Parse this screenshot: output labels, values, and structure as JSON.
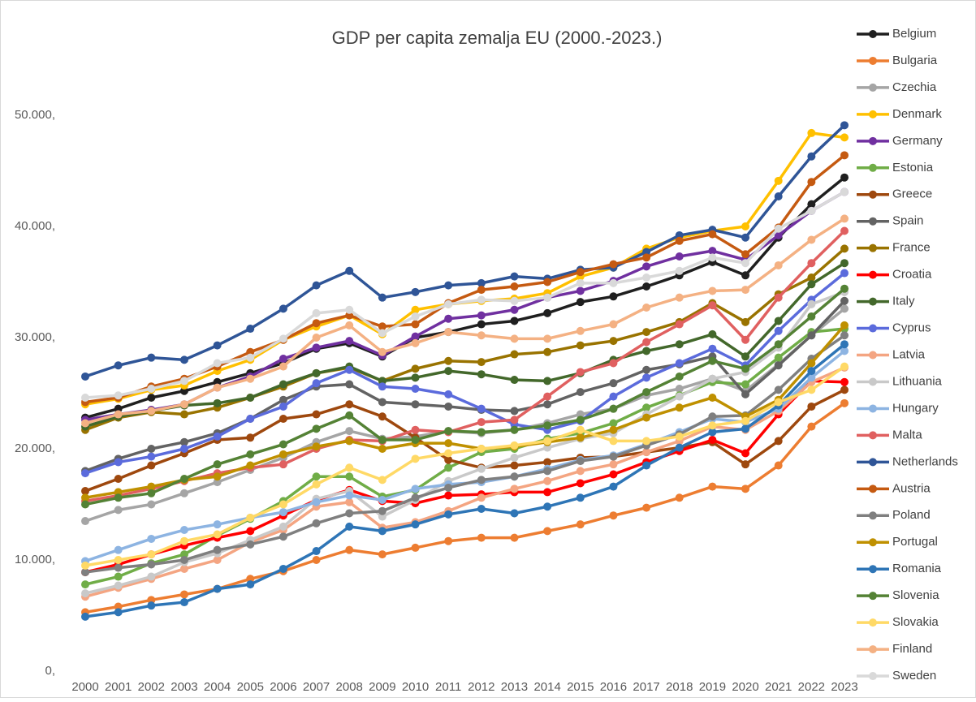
{
  "chart_data": {
    "type": "line",
    "title": "GDP per capita zemalja EU (2000.-2023.)",
    "categories": [
      "2000",
      "2001",
      "2002",
      "2003",
      "2004",
      "2005",
      "2006",
      "2007",
      "2008",
      "2009",
      "2010",
      "2011",
      "2012",
      "2013",
      "2014",
      "2015",
      "2016",
      "2017",
      "2018",
      "2019",
      "2020",
      "2021",
      "2022",
      "2023"
    ],
    "ylim": [
      0,
      50000
    ],
    "yticks": [
      {
        "value": 0,
        "label": "0,"
      },
      {
        "value": 10000,
        "label": "10.000,"
      },
      {
        "value": 20000,
        "label": "20.000,"
      },
      {
        "value": 30000,
        "label": "30.000,"
      },
      {
        "value": 40000,
        "label": "40.000,"
      },
      {
        "value": 50000,
        "label": "50.000,"
      }
    ],
    "grid": false,
    "legend": "right",
    "series": [
      {
        "name": "Belgium",
        "color": "#1f1f1f",
        "values": [
          22800,
          23600,
          24600,
          25200,
          26000,
          26800,
          27700,
          29000,
          29500,
          28300,
          30000,
          30500,
          31200,
          31500,
          32200,
          33200,
          33700,
          34600,
          35600,
          36800,
          35600,
          39000,
          42000,
          44400
        ]
      },
      {
        "name": "Bulgaria",
        "color": "#ed7d31",
        "values": [
          5300,
          5800,
          6400,
          6900,
          7400,
          8300,
          9000,
          10000,
          10900,
          10500,
          11100,
          11700,
          12000,
          12000,
          12600,
          13200,
          14000,
          14700,
          15600,
          16600,
          16400,
          18500,
          22000,
          24100
        ]
      },
      {
        "name": "Czechia",
        "color": "#a5a5a5",
        "values": [
          13500,
          14500,
          15000,
          16000,
          17000,
          18100,
          19200,
          20600,
          21600,
          20900,
          21100,
          21600,
          21400,
          21700,
          22300,
          23100,
          23600,
          24800,
          25400,
          26300,
          25200,
          27600,
          30200,
          32600
        ]
      },
      {
        "name": "Denmark",
        "color": "#ffc000",
        "values": [
          24000,
          24500,
          25300,
          25700,
          27000,
          28000,
          29800,
          31000,
          32000,
          30300,
          32500,
          33000,
          33300,
          33500,
          34000,
          35500,
          36300,
          38000,
          39000,
          39600,
          40000,
          44100,
          48400,
          48000
        ]
      },
      {
        "name": "Germany",
        "color": "#7030a0",
        "values": [
          22600,
          23100,
          23500,
          24000,
          25500,
          26500,
          28100,
          29100,
          29700,
          28400,
          30100,
          31700,
          32000,
          32500,
          33600,
          34200,
          35100,
          36400,
          37300,
          37800,
          37000,
          39200,
          41400,
          43100
        ]
      },
      {
        "name": "Estonia",
        "color": "#70ad47",
        "values": [
          7800,
          8500,
          9700,
          10500,
          12200,
          13700,
          15300,
          17500,
          17500,
          15700,
          16300,
          18300,
          19700,
          20000,
          20900,
          21400,
          22300,
          23700,
          24800,
          26000,
          25800,
          28200,
          30500,
          30800
        ]
      },
      {
        "name": "Greece",
        "color": "#9e480e",
        "values": [
          16200,
          17300,
          18500,
          19600,
          20800,
          21000,
          22700,
          23100,
          24000,
          22900,
          21000,
          19000,
          18300,
          18500,
          18800,
          19200,
          19300,
          19700,
          20100,
          20600,
          18600,
          20700,
          23800,
          25300
        ]
      },
      {
        "name": "Spain",
        "color": "#636363",
        "values": [
          18000,
          19100,
          20000,
          20600,
          21400,
          22700,
          24400,
          25600,
          25800,
          24200,
          24000,
          23800,
          23500,
          23400,
          24000,
          25100,
          25900,
          27100,
          27600,
          28300,
          24900,
          27500,
          30200,
          33300
        ]
      },
      {
        "name": "France",
        "color": "#997300",
        "values": [
          21700,
          22800,
          23300,
          23100,
          23700,
          24600,
          25600,
          26800,
          27300,
          26100,
          27200,
          27900,
          27800,
          28500,
          28700,
          29300,
          29700,
          30500,
          31400,
          33100,
          31400,
          33900,
          35400,
          38000
        ]
      },
      {
        "name": "Croatia",
        "color": "#ff0000",
        "values": [
          8900,
          9600,
          10500,
          11300,
          12000,
          12600,
          14000,
          15400,
          16300,
          15300,
          15100,
          15800,
          15900,
          16100,
          16100,
          16900,
          17700,
          18800,
          19800,
          20800,
          19600,
          23100,
          26100,
          26000
        ]
      },
      {
        "name": "Italy",
        "color": "#43682b",
        "values": [
          22000,
          22900,
          23400,
          23900,
          24100,
          24600,
          25800,
          26800,
          27400,
          26100,
          26400,
          27000,
          26700,
          26200,
          26100,
          26800,
          28000,
          28800,
          29400,
          30300,
          28300,
          31500,
          34800,
          36700
        ]
      },
      {
        "name": "Cyprus",
        "color": "#5b6bdc",
        "values": [
          17800,
          18800,
          19300,
          20000,
          21100,
          22700,
          23800,
          25900,
          27100,
          25600,
          25400,
          24900,
          23600,
          22200,
          21700,
          22500,
          24700,
          26400,
          27700,
          29000,
          27500,
          30600,
          33400,
          35800
        ]
      },
      {
        "name": "Latvia",
        "color": "#f4a582",
        "values": [
          6700,
          7500,
          8300,
          9200,
          10000,
          11600,
          12700,
          14800,
          15200,
          12900,
          13400,
          14400,
          15600,
          16400,
          17100,
          18000,
          18600,
          19700,
          20700,
          22000,
          21700,
          23400,
          26000,
          27300
        ]
      },
      {
        "name": "Lithuania",
        "color": "#c9c9c9",
        "values": [
          7000,
          7700,
          8500,
          9800,
          10600,
          11800,
          13000,
          15500,
          16200,
          13900,
          15400,
          17100,
          18200,
          19200,
          20100,
          20900,
          21400,
          23100,
          24700,
          26300,
          26900,
          29100,
          33000,
          34100
        ]
      },
      {
        "name": "Hungary",
        "color": "#8db4e2",
        "values": [
          9900,
          10900,
          11900,
          12700,
          13200,
          13800,
          14300,
          15200,
          15800,
          15400,
          16400,
          16800,
          17000,
          17500,
          18200,
          19000,
          19400,
          20400,
          21500,
          22700,
          22400,
          23600,
          26400,
          28800
        ]
      },
      {
        "name": "Malta",
        "color": "#e06060",
        "values": [
          15300,
          15800,
          16400,
          17100,
          17800,
          18300,
          18600,
          20000,
          20800,
          20700,
          21700,
          21500,
          22400,
          22600,
          24700,
          26900,
          27700,
          29600,
          31200,
          32900,
          29800,
          33600,
          36700,
          39600
        ]
      },
      {
        "name": "Netherlands",
        "color": "#2f5597",
        "values": [
          26500,
          27500,
          28200,
          28000,
          29300,
          30800,
          32600,
          34700,
          36000,
          33600,
          34100,
          34700,
          34900,
          35500,
          35300,
          36100,
          36300,
          37700,
          39200,
          39700,
          39000,
          42700,
          46300,
          49100
        ]
      },
      {
        "name": "Austria",
        "color": "#c55a11",
        "values": [
          24200,
          24600,
          25600,
          26300,
          27400,
          28700,
          29800,
          31300,
          32000,
          31000,
          31200,
          33100,
          34300,
          34600,
          35000,
          35900,
          36600,
          37200,
          38700,
          39300,
          37500,
          39900,
          44000,
          46400
        ]
      },
      {
        "name": "Poland",
        "color": "#7f7f7f",
        "values": [
          8900,
          9300,
          9600,
          10000,
          10900,
          11400,
          12100,
          13300,
          14200,
          14400,
          15600,
          16500,
          17200,
          17500,
          18000,
          18900,
          19300,
          20300,
          21300,
          22900,
          23000,
          25300,
          28100,
          30200
        ]
      },
      {
        "name": "Portugal",
        "color": "#bf9000",
        "values": [
          15600,
          16100,
          16600,
          17200,
          17500,
          18500,
          19500,
          20200,
          20700,
          20000,
          20500,
          20500,
          20000,
          20200,
          20600,
          21000,
          21700,
          22800,
          23700,
          24600,
          22900,
          24400,
          27700,
          31100
        ]
      },
      {
        "name": "Romania",
        "color": "#2e75b6",
        "values": [
          4900,
          5300,
          5900,
          6200,
          7400,
          7800,
          9200,
          10800,
          13000,
          12600,
          13200,
          14100,
          14600,
          14200,
          14800,
          15600,
          16600,
          18500,
          20100,
          21500,
          21800,
          23900,
          27000,
          29400
        ]
      },
      {
        "name": "Slovenia",
        "color": "#548235",
        "values": [
          15000,
          15600,
          16000,
          17300,
          18600,
          19500,
          20400,
          21800,
          23000,
          20800,
          20800,
          21600,
          21500,
          21700,
          22100,
          22600,
          23600,
          25100,
          26500,
          27900,
          27200,
          29400,
          31900,
          34400
        ]
      },
      {
        "name": "Slovakia",
        "color": "#ffd966",
        "values": [
          9500,
          10000,
          10500,
          11700,
          12300,
          13800,
          15000,
          16800,
          18300,
          17200,
          19100,
          19600,
          20000,
          20300,
          20700,
          21700,
          20700,
          20700,
          21100,
          22100,
          22500,
          24200,
          25300,
          27400
        ]
      },
      {
        "name": "Finland",
        "color": "#f4b183",
        "values": [
          22300,
          23100,
          23400,
          24000,
          25500,
          26300,
          27400,
          30000,
          31100,
          28700,
          29500,
          30500,
          30200,
          29900,
          29900,
          30600,
          31200,
          32700,
          33600,
          34200,
          34300,
          36500,
          38800,
          40700
        ]
      },
      {
        "name": "Sweden",
        "color": "#d9d9d9",
        "values": [
          24600,
          24800,
          25400,
          26100,
          27700,
          28200,
          29900,
          32200,
          32500,
          30400,
          31900,
          33000,
          33400,
          33300,
          33600,
          34900,
          34900,
          35400,
          36000,
          37200,
          36700,
          39800,
          41400,
          43100
        ]
      }
    ]
  }
}
